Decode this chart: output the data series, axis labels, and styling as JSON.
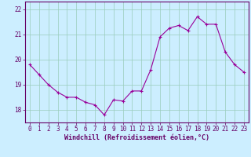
{
  "x": [
    0,
    1,
    2,
    3,
    4,
    5,
    6,
    7,
    8,
    9,
    10,
    11,
    12,
    13,
    14,
    15,
    16,
    17,
    18,
    19,
    20,
    21,
    22,
    23
  ],
  "y": [
    19.8,
    19.4,
    19.0,
    18.7,
    18.5,
    18.5,
    18.3,
    18.2,
    17.8,
    18.4,
    18.35,
    18.75,
    18.75,
    19.6,
    20.9,
    21.25,
    21.35,
    21.15,
    21.7,
    21.4,
    21.4,
    20.3,
    19.8,
    19.5
  ],
  "line_color": "#990099",
  "marker": "+",
  "marker_color": "#990099",
  "bg_color": "#cceeff",
  "grid_color": "#99ccbb",
  "xlabel": "Windchill (Refroidissement éolien,°C)",
  "xlim": [
    -0.5,
    23.5
  ],
  "ylim": [
    17.5,
    22.3
  ],
  "yticks": [
    18,
    19,
    20,
    21,
    22
  ],
  "xticks": [
    0,
    1,
    2,
    3,
    4,
    5,
    6,
    7,
    8,
    9,
    10,
    11,
    12,
    13,
    14,
    15,
    16,
    17,
    18,
    19,
    20,
    21,
    22,
    23
  ],
  "tick_color": "#660066",
  "label_fontsize": 6,
  "tick_fontsize": 5.5,
  "spine_color": "#660066",
  "linewidth": 0.8,
  "markersize": 3
}
